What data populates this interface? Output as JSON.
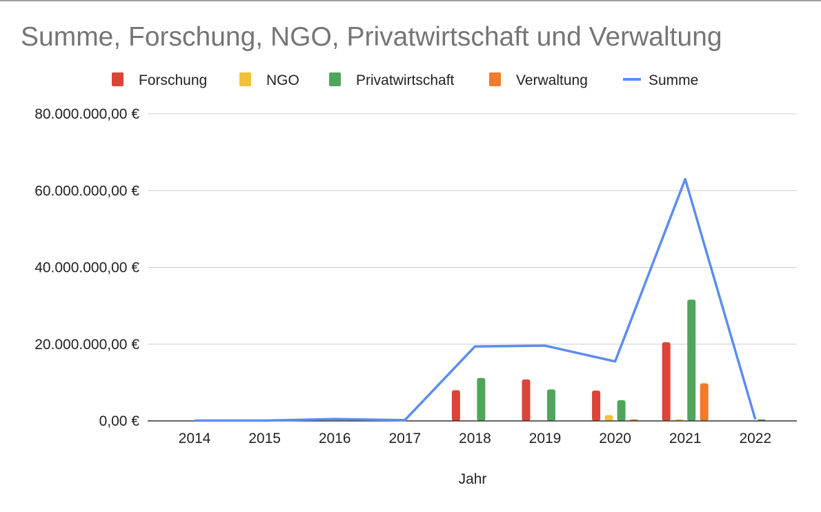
{
  "chart_data": {
    "type": "bar",
    "title": "Summe, Forschung, NGO, Privatwirtschaft und Verwaltung",
    "xlabel": "Jahr",
    "ylabel": "",
    "categories": [
      "2014",
      "2015",
      "2016",
      "2017",
      "2018",
      "2019",
      "2020",
      "2021",
      "2022"
    ],
    "ylim": [
      0,
      80000000
    ],
    "yticks": [
      0,
      20000000,
      40000000,
      60000000,
      80000000
    ],
    "ytick_labels": [
      "0,00 €",
      "20.000.000,00 €",
      "40.000.000,00 €",
      "60.000.000,00 €",
      "80.000.000,00 €"
    ],
    "grid": true,
    "legend_position": "top",
    "series": [
      {
        "name": "Forschung",
        "type": "bar",
        "color": "#db4437",
        "values": [
          0,
          0,
          0,
          0,
          8000000,
          10800000,
          7900000,
          20500000,
          0
        ]
      },
      {
        "name": "NGO",
        "type": "bar",
        "color": "#f4c03c",
        "values": [
          0,
          0,
          0,
          0,
          0,
          0,
          1500000,
          400000,
          0
        ]
      },
      {
        "name": "Privatwirtschaft",
        "type": "bar",
        "color": "#4fa55b",
        "values": [
          0,
          0,
          0,
          0,
          11200000,
          8200000,
          5400000,
          31600000,
          400000
        ]
      },
      {
        "name": "Verwaltung",
        "type": "bar",
        "color": "#f07b2a",
        "values": [
          0,
          0,
          0,
          0,
          0,
          0,
          400000,
          9800000,
          0
        ]
      },
      {
        "name": "Summe",
        "type": "line",
        "color": "#5b8dee",
        "values": [
          100000,
          100000,
          500000,
          200000,
          19400000,
          19600000,
          15500000,
          63000000,
          400000
        ]
      }
    ]
  }
}
